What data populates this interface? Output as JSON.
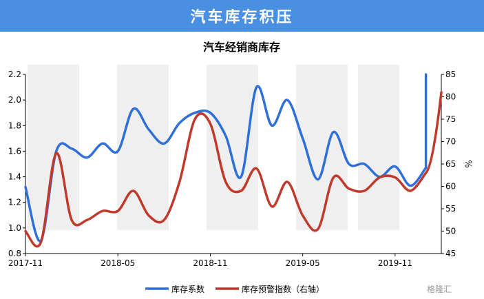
{
  "banner": {
    "title": "汽车库存积压"
  },
  "watermark": {
    "text": "格隆汇",
    "logo_letters": "CEIE"
  },
  "chart_data": {
    "type": "line",
    "title": "汽车经销商库存",
    "x_tick_labels": [
      "2017-11",
      "2018-05",
      "2018-11",
      "2019-05",
      "2019-11"
    ],
    "x_range": [
      "2017-11",
      "2020-02"
    ],
    "y_left": {
      "range": [
        0.8,
        2.2
      ],
      "ticks": [
        "0.8",
        "1.0",
        "1.2",
        "1.4",
        "1.6",
        "1.8",
        "2.0",
        "2.2"
      ]
    },
    "y_right": {
      "range": [
        45,
        85
      ],
      "label": "%",
      "ticks": [
        "45",
        "50",
        "55",
        "60",
        "65",
        "70",
        "75",
        "80",
        "85"
      ]
    },
    "grid": false,
    "legend_position": "bottom-center",
    "series": [
      {
        "name": "库存系数",
        "axis": "left",
        "color": "#2f6fd8",
        "x": [
          "2017-11",
          "2017-12",
          "2018-01",
          "2018-02",
          "2018-03",
          "2018-04",
          "2018-05",
          "2018-06",
          "2018-07",
          "2018-08",
          "2018-09",
          "2018-10",
          "2018-11",
          "2018-12",
          "2019-01",
          "2019-02",
          "2019-03",
          "2019-04",
          "2019-05",
          "2019-06",
          "2019-07",
          "2019-08",
          "2019-09",
          "2019-10",
          "2019-11",
          "2019-12",
          "2020-01"
        ],
        "values": [
          1.32,
          0.9,
          1.6,
          1.62,
          1.55,
          1.66,
          1.6,
          1.93,
          1.77,
          1.66,
          1.82,
          1.9,
          1.9,
          1.72,
          1.4,
          2.1,
          1.8,
          2.0,
          1.7,
          1.38,
          1.75,
          1.5,
          1.5,
          1.4,
          1.48,
          1.33,
          1.47
        ]
      },
      {
        "name": "库存预警指数（右轴）",
        "axis": "right",
        "color": "#c0392b",
        "x": [
          "2017-11",
          "2017-12",
          "2018-01",
          "2018-02",
          "2018-03",
          "2018-04",
          "2018-05",
          "2018-06",
          "2018-07",
          "2018-08",
          "2018-09",
          "2018-10",
          "2018-11",
          "2018-12",
          "2019-01",
          "2019-02",
          "2019-03",
          "2019-04",
          "2019-05",
          "2019-06",
          "2019-07",
          "2019-08",
          "2019-09",
          "2019-10",
          "2019-11",
          "2019-12",
          "2020-01"
        ],
        "values": [
          50,
          47.5,
          67.4,
          52.5,
          52.5,
          54.5,
          54.5,
          59,
          53.5,
          52.5,
          61,
          75,
          74,
          61,
          59,
          64,
          55.5,
          61,
          53.5,
          50.5,
          62,
          59.5,
          59,
          62,
          62,
          59,
          63
        ]
      }
    ],
    "series1_spike": {
      "x": [
        "2020-01",
        "2020-01"
      ],
      "values": [
        1.47,
        2.2
      ]
    },
    "series2_end": {
      "x": [
        "2020-01",
        "2020-02"
      ],
      "values": [
        63,
        81
      ]
    }
  }
}
